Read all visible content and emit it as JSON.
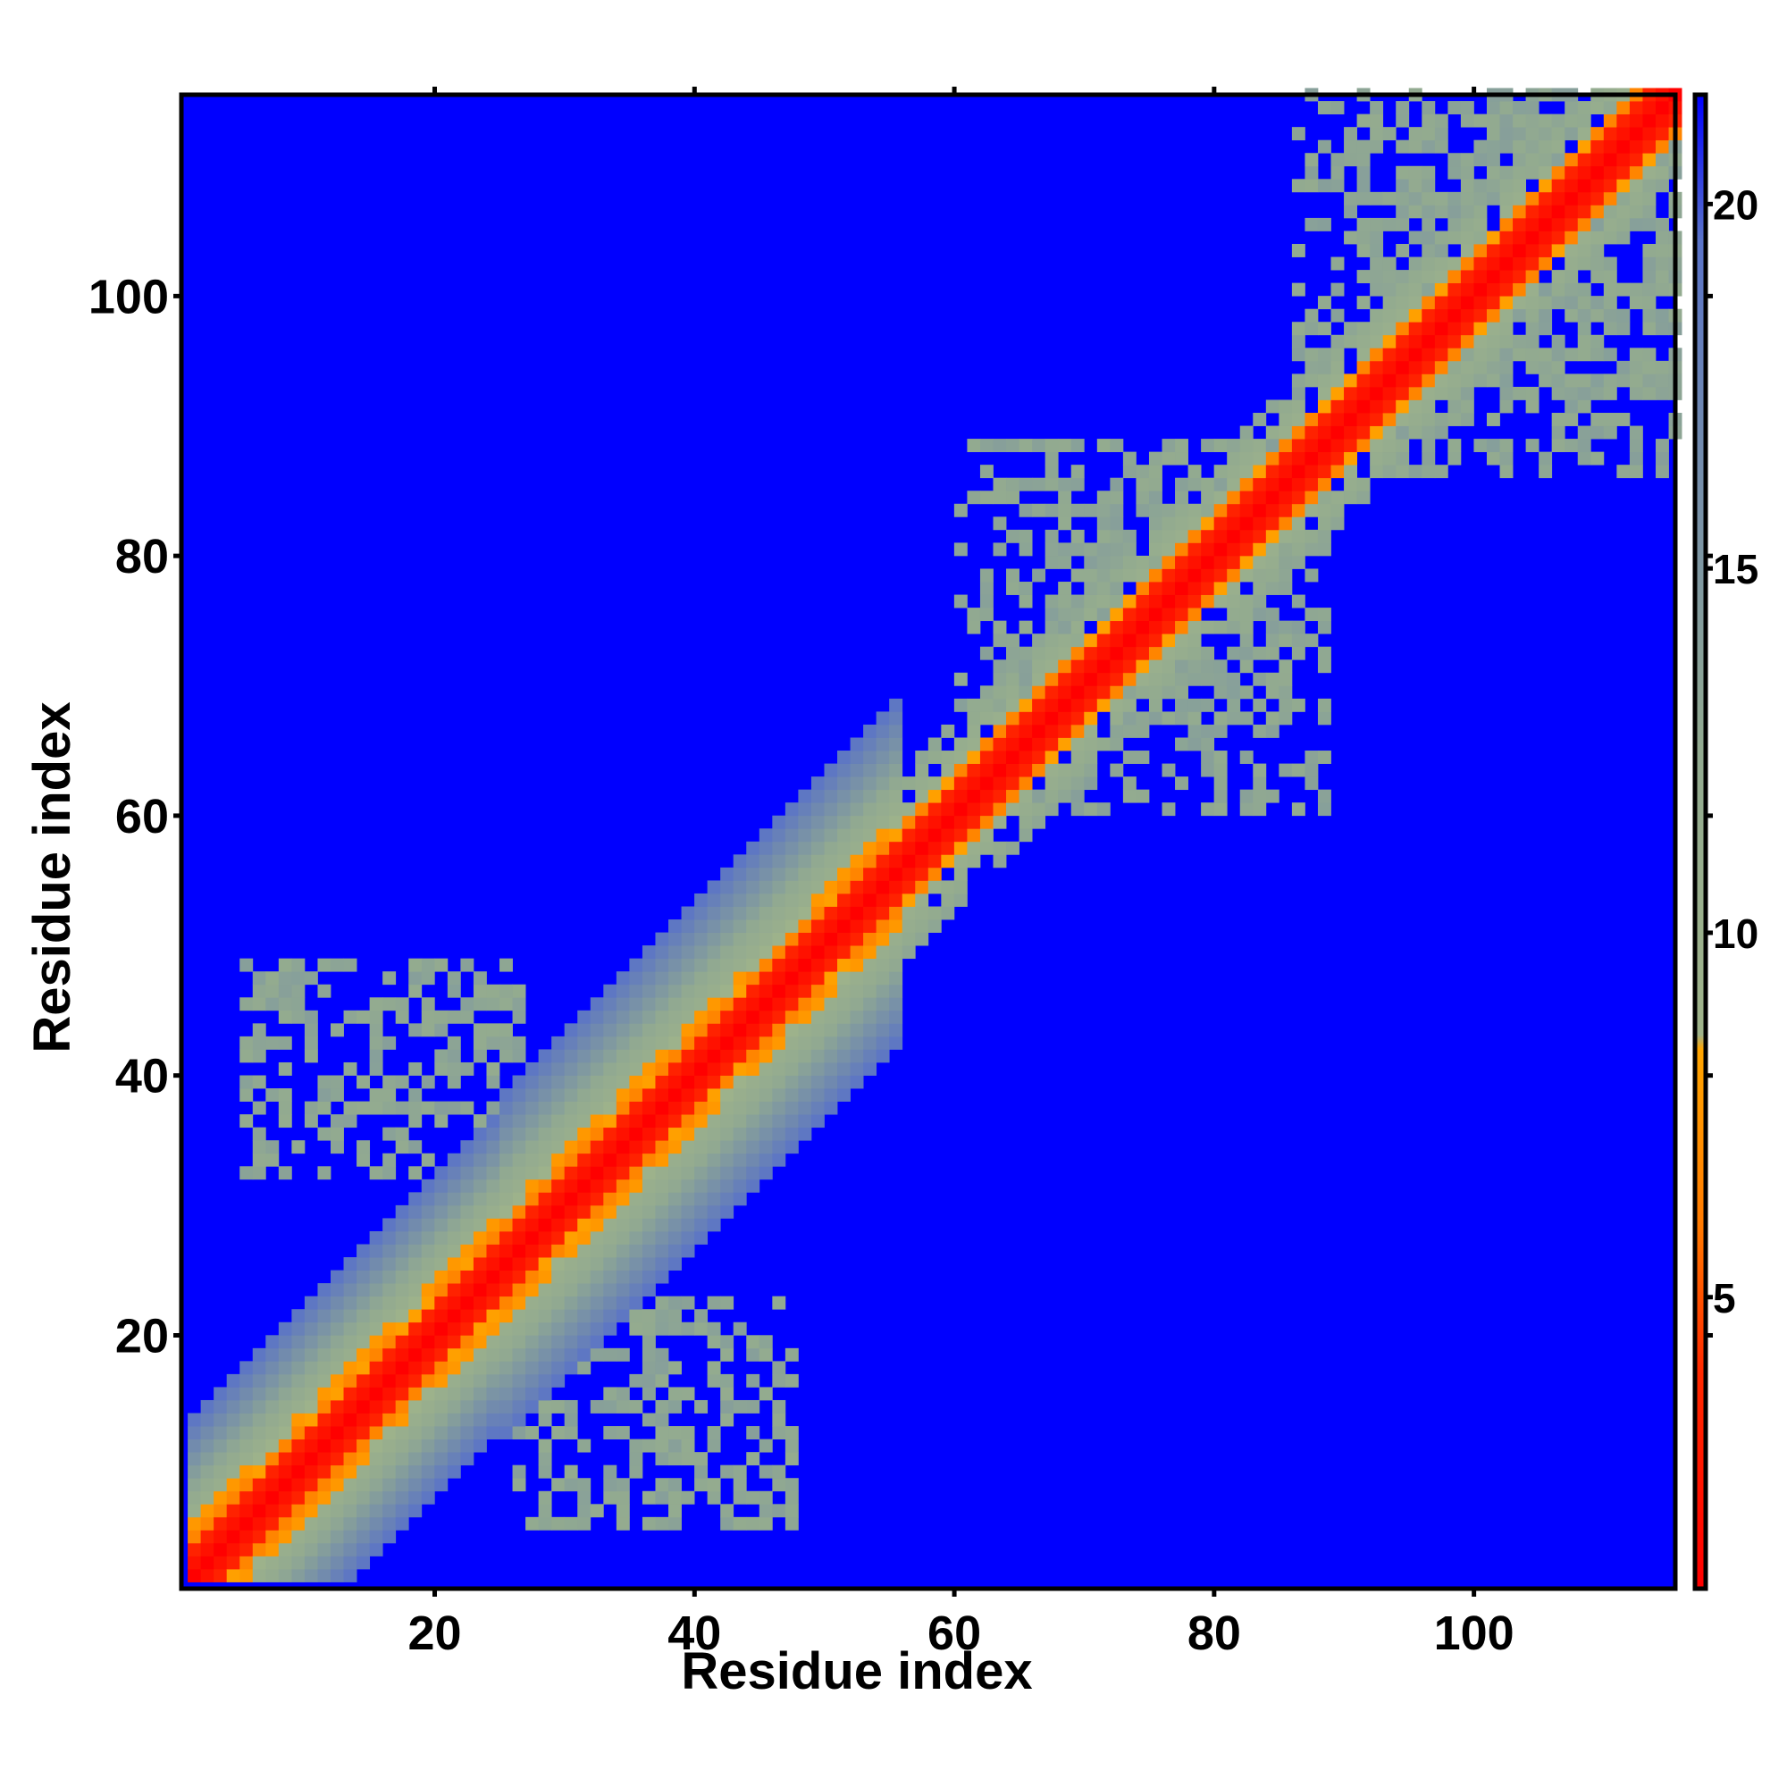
{
  "chart_data": {
    "type": "heatmap",
    "title": "",
    "xlabel": "Residue index",
    "ylabel": "Residue index",
    "n_residues": 115,
    "x_range": [
      1,
      115
    ],
    "y_range": [
      1,
      115
    ],
    "x_ticks": [
      20,
      40,
      60,
      80,
      100
    ],
    "y_ticks": [
      20,
      40,
      60,
      80,
      100
    ],
    "colorbar": {
      "range": [
        1,
        21.5
      ],
      "ticks": [
        5,
        10,
        15,
        20
      ],
      "stops": [
        {
          "value": 1.0,
          "color": "#ff0000"
        },
        {
          "value": 4.0,
          "color": "#ff2a00"
        },
        {
          "value": 6.0,
          "color": "#ff7a00"
        },
        {
          "value": 8.4,
          "color": "#ffa500"
        },
        {
          "value": 8.6,
          "color": "#9fb38a"
        },
        {
          "value": 12.5,
          "color": "#92aa90"
        },
        {
          "value": 17.0,
          "color": "#6f88b0"
        },
        {
          "value": 19.5,
          "color": "#5a73c8"
        },
        {
          "value": 21.5,
          "color": "#0000ff"
        }
      ]
    },
    "background_value": 21.5,
    "diagonal_profile": [
      {
        "from": 1,
        "to": 24,
        "core_width": 2,
        "orange_width": 4,
        "halo_width": 12,
        "halo_max": 19
      },
      {
        "from": 25,
        "to": 55,
        "core_width": 2,
        "orange_width": 4,
        "halo_width": 13,
        "halo_max": 19
      },
      {
        "from": 56,
        "to": 115,
        "core_width": 2,
        "orange_width": 3,
        "halo_width": 7,
        "halo_max": 13
      }
    ],
    "speckle_regions": [
      {
        "x": [
          5,
          26
        ],
        "y": [
          32,
          48
        ],
        "density": 0.45,
        "value": 12
      },
      {
        "x": [
          26,
          47
        ],
        "y": [
          5,
          22
        ],
        "density": 0.45,
        "value": 12
      },
      {
        "x": [
          60,
          85
        ],
        "y": [
          66,
          88
        ],
        "density": 0.4,
        "value": 12
      },
      {
        "x": [
          66,
          88
        ],
        "y": [
          60,
          85
        ],
        "density": 0.4,
        "value": 12
      },
      {
        "x": [
          86,
          114
        ],
        "y": [
          92,
          115
        ],
        "density": 0.45,
        "value": 12
      },
      {
        "x": [
          92,
          115
        ],
        "y": [
          86,
          114
        ],
        "density": 0.45,
        "value": 12
      }
    ]
  }
}
